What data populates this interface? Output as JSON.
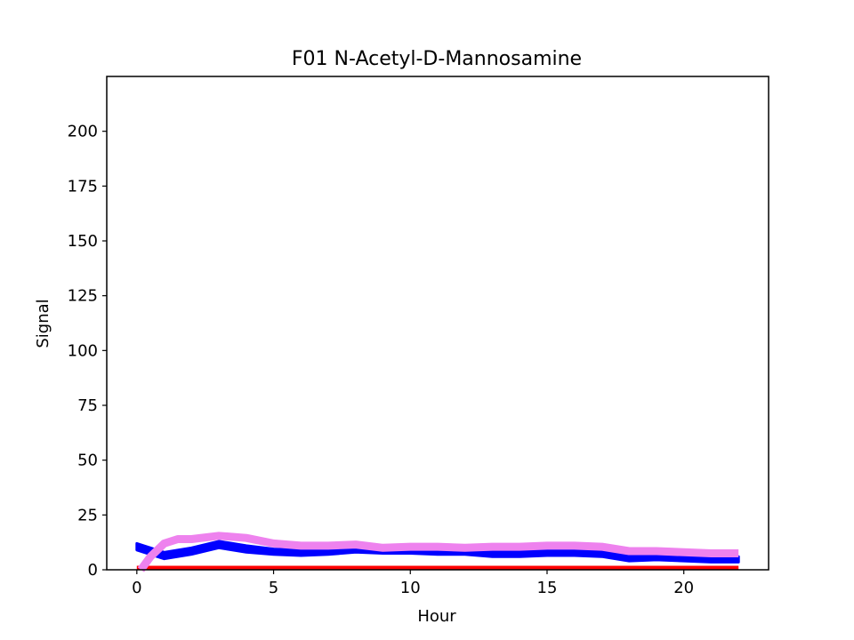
{
  "chart_data": {
    "type": "line",
    "title": "F01 N-Acetyl-D-Mannosamine",
    "xlabel": "Hour",
    "ylabel": "Signal",
    "xlim": [
      -1.1,
      23.1
    ],
    "ylim": [
      0,
      225
    ],
    "xticks": [
      0,
      5,
      10,
      15,
      20
    ],
    "yticks": [
      0,
      25,
      50,
      75,
      100,
      125,
      150,
      175,
      200
    ],
    "grid": false,
    "legend": "none",
    "series": [
      {
        "color": "#ff0000",
        "kind": "line",
        "x": [
          0,
          22
        ],
        "y": [
          1,
          1
        ]
      },
      {
        "color": "#0000ff",
        "kind": "band",
        "x": [
          0,
          1,
          2,
          3,
          4,
          5,
          6,
          7,
          8,
          9,
          10,
          11,
          12,
          13,
          14,
          15,
          16,
          17,
          18,
          19,
          20,
          21,
          22
        ],
        "y_low": [
          9,
          5,
          7,
          10,
          8,
          7,
          6.5,
          7,
          8,
          7.5,
          7.5,
          7,
          7,
          6,
          6,
          6.5,
          6.5,
          6,
          4,
          4.5,
          4,
          3.5,
          3.5
        ],
        "y_high": [
          12,
          8,
          10,
          13,
          11,
          9.5,
          9,
          9.5,
          10,
          9.5,
          9.5,
          9,
          9,
          9,
          9,
          9.5,
          10,
          9,
          6.5,
          7,
          6.5,
          6,
          6
        ]
      },
      {
        "color": "#ee82ee",
        "kind": "line",
        "x": [
          0.15,
          0.5,
          1,
          1.5,
          2,
          3,
          4,
          5,
          6,
          7,
          8,
          9,
          10,
          11,
          12,
          13,
          14,
          15,
          16,
          17,
          18,
          19,
          20,
          21,
          22
        ],
        "y": [
          0,
          6,
          12,
          14,
          14,
          15.5,
          14.5,
          12,
          11,
          11,
          11.5,
          10,
          10.5,
          10.5,
          10,
          10.5,
          10.5,
          11,
          11,
          10.5,
          8.5,
          8.5,
          8,
          7.5,
          7.5
        ]
      }
    ]
  }
}
